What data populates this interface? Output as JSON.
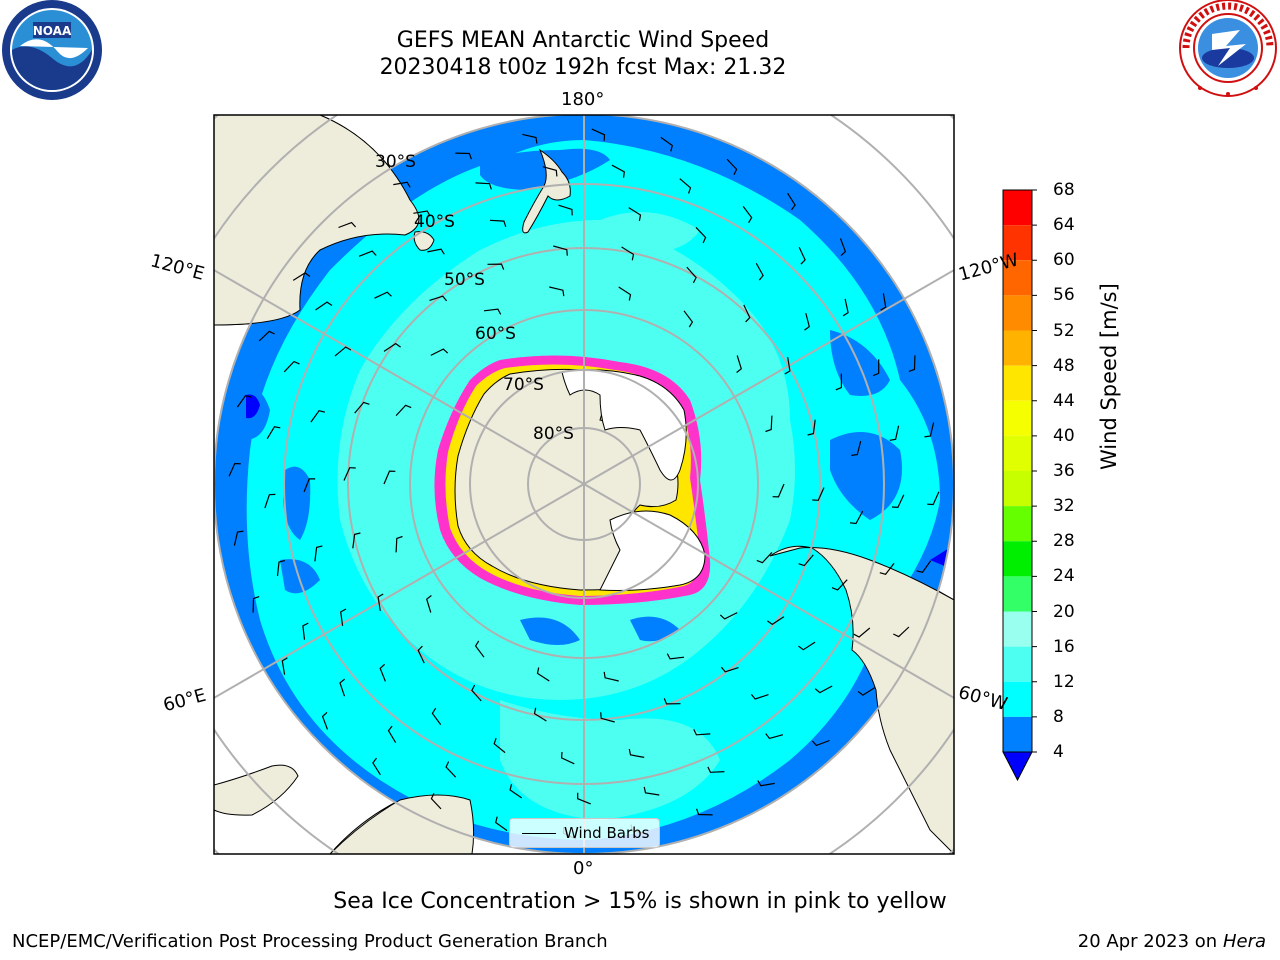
{
  "header": {
    "title_line1": "GEFS MEAN Antarctic Wind Speed",
    "title_line2": "20230418 t00z 192h fcst   Max: 21.32"
  },
  "logos": {
    "left": "noaa-logo",
    "right": "national-weather-service-logo"
  },
  "map": {
    "projection": "south-polar-stereographic",
    "longitude_labels": {
      "top": "180°",
      "left_upper": "120°E",
      "left_lower": "60°E",
      "right_upper": "120°W",
      "right_lower": "60°W",
      "bottom": "0°"
    },
    "latitude_labels": [
      "30°S",
      "40°S",
      "50°S",
      "60°S",
      "70°S",
      "80°S"
    ],
    "legend_label": "Wind Barbs",
    "colors": {
      "land": "#eeecda",
      "ice_sheet": "#ffffff",
      "sea_ice_edge": "#ff33cc",
      "gridline": "#b0b0b0"
    }
  },
  "colorbar": {
    "label": "Wind Speed [m/s]",
    "ticks": [
      "68",
      "64",
      "60",
      "56",
      "52",
      "48",
      "44",
      "40",
      "36",
      "32",
      "28",
      "24",
      "20",
      "16",
      "12",
      "8",
      "4"
    ],
    "bins": [
      {
        "from": 64,
        "to": 68,
        "color": "#ff0000"
      },
      {
        "from": 60,
        "to": 64,
        "color": "#ff3300"
      },
      {
        "from": 56,
        "to": 60,
        "color": "#ff6600"
      },
      {
        "from": 52,
        "to": 56,
        "color": "#ff8c00"
      },
      {
        "from": 48,
        "to": 52,
        "color": "#ffb300"
      },
      {
        "from": 44,
        "to": 48,
        "color": "#ffe600"
      },
      {
        "from": 40,
        "to": 44,
        "color": "#f5ff00"
      },
      {
        "from": 36,
        "to": 40,
        "color": "#e0ff00"
      },
      {
        "from": 32,
        "to": 36,
        "color": "#c8ff00"
      },
      {
        "from": 28,
        "to": 32,
        "color": "#66ff00"
      },
      {
        "from": 24,
        "to": 28,
        "color": "#00ee00"
      },
      {
        "from": 20,
        "to": 24,
        "color": "#33ff66"
      },
      {
        "from": 16,
        "to": 20,
        "color": "#99ffee"
      },
      {
        "from": 12,
        "to": 16,
        "color": "#4dfff0"
      },
      {
        "from": 8,
        "to": 12,
        "color": "#00ffff"
      },
      {
        "from": 4,
        "to": 8,
        "color": "#0080ff"
      }
    ],
    "under_color": "#0000ff"
  },
  "footer": {
    "note": "Sea Ice Concentration > 15% is shown in pink to yellow",
    "credit_left": "NCEP/EMC/Verification Post Processing Product Generation Branch",
    "credit_date": "20 Apr 2023 on",
    "credit_machine": "Hera"
  }
}
